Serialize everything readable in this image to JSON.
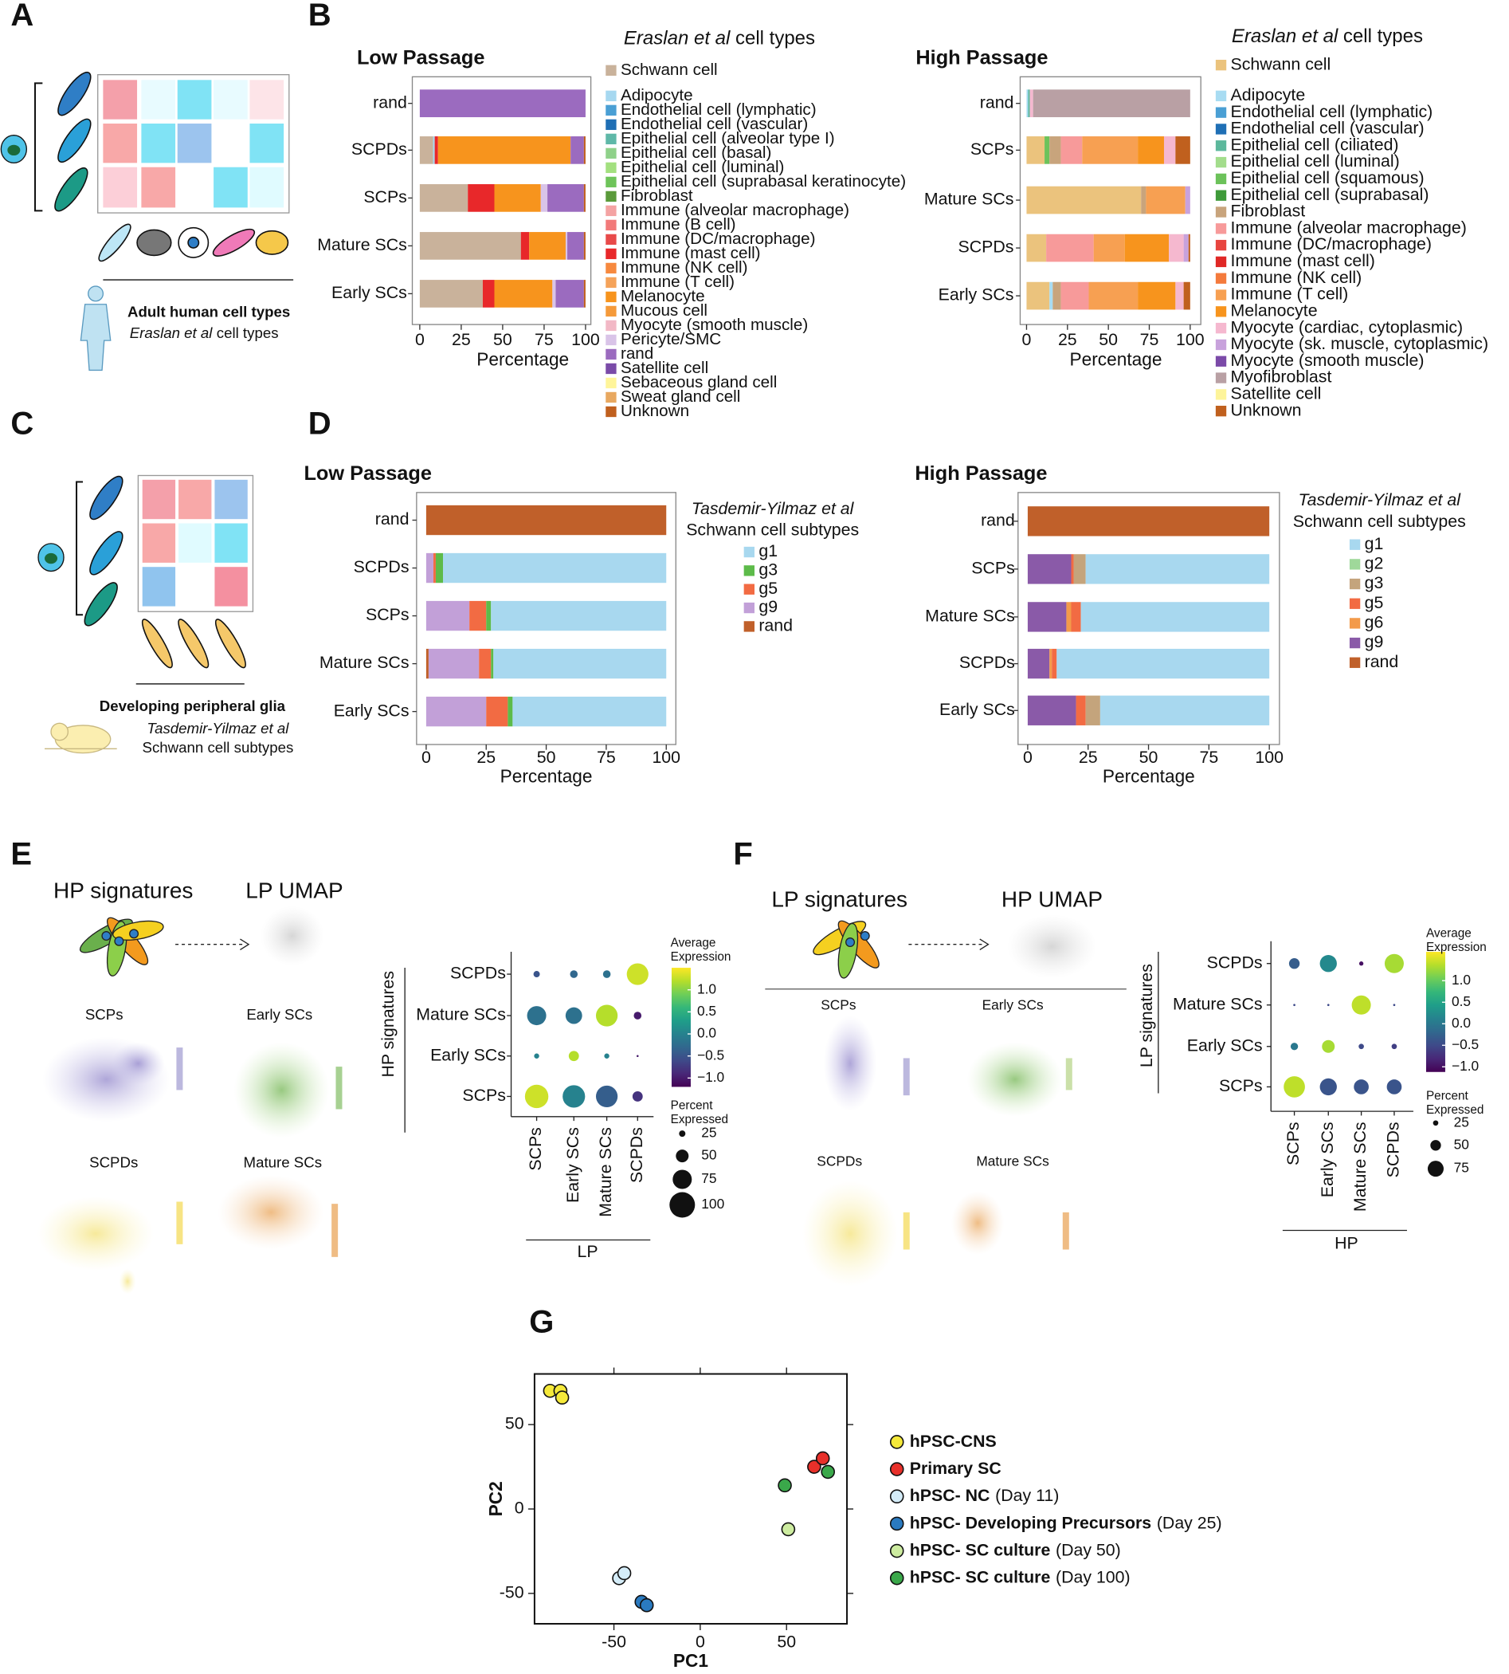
{
  "figure": {
    "panels": [
      "A",
      "B",
      "C",
      "D",
      "E",
      "F",
      "G"
    ],
    "A": {
      "caption": "Adult human cell types",
      "reference": [
        "Eraslan et al",
        "cell types"
      ]
    },
    "C": {
      "caption": "Developing peripheral glia",
      "reference": [
        "Tasdemir-Yilmaz et al",
        "Schwann cell subtypes"
      ]
    },
    "E": {
      "signatures": "HP signatures",
      "umap": "LP UMAP",
      "panels": [
        "SCPs",
        "Early SCs",
        "SCPDs",
        "Mature SCs"
      ]
    },
    "F": {
      "signatures": "LP signatures",
      "umap": "HP UMAP",
      "panels": [
        "SCPs",
        "Early SCs",
        "SCPDs",
        "Mature SCs"
      ]
    }
  },
  "chart_data": [
    {
      "type": "bar",
      "orientation": "horizontal",
      "stacked": true,
      "title": "Low Passage",
      "legend_title": [
        "Eraslan et al",
        "cell types"
      ],
      "x_label": "Percentage",
      "categories": [
        "rand",
        "SCPDs",
        "SCPs",
        "Mature SCs",
        "Early SCs"
      ],
      "xlim": [
        -4.5,
        103.2
      ],
      "xticks": [
        0,
        25,
        50,
        75,
        100
      ],
      "series": [
        {
          "name": "Schwann cell",
          "color": "#c9b29b",
          "values": [
            0,
            8,
            29,
            61,
            38
          ]
        },
        {
          "name": "Adipocyte",
          "color": "#a6d8f0",
          "values": [
            0,
            1,
            0,
            0,
            0
          ]
        },
        {
          "name": "Endothelial cell (lymphatic)",
          "color": "#4a9fd4",
          "values": [
            0,
            0,
            0,
            0,
            0
          ]
        },
        {
          "name": "Endothelial cell (vascular)",
          "color": "#1f6fb5",
          "values": [
            0,
            0,
            0,
            0,
            0
          ]
        },
        {
          "name": "Epithelial cell (alveolar type I)",
          "color": "#5fb8a8",
          "values": [
            0,
            0,
            0,
            0,
            0
          ]
        },
        {
          "name": "Epithelial cell (basal)",
          "color": "#8fd18a",
          "values": [
            0,
            0,
            0,
            0,
            0
          ]
        },
        {
          "name": "Epithelial cell (luminal)",
          "color": "#a3e07f",
          "values": [
            0,
            0,
            0,
            0,
            0
          ]
        },
        {
          "name": "Epithelial cell (suprabasal keratinocyte)",
          "color": "#6ec45a",
          "values": [
            0,
            0,
            0,
            0,
            0
          ]
        },
        {
          "name": "Fibroblast",
          "color": "#5a9a3a",
          "values": [
            0,
            0,
            0,
            0,
            0
          ]
        },
        {
          "name": "Immune (alveolar macrophage)",
          "color": "#f4a3a3",
          "values": [
            0,
            0,
            0,
            0,
            0
          ]
        },
        {
          "name": "Immune (B cell)",
          "color": "#f27a7a",
          "values": [
            0,
            0,
            0,
            0,
            0
          ]
        },
        {
          "name": "Immune (DC/macrophage)",
          "color": "#e84a4a",
          "values": [
            0,
            0,
            0,
            0,
            0
          ]
        },
        {
          "name": "Immune (mast cell)",
          "color": "#e8282a",
          "values": [
            0,
            2,
            16,
            5,
            7
          ]
        },
        {
          "name": "Immune (NK cell)",
          "color": "#f7893e",
          "values": [
            0,
            0,
            0,
            0,
            0
          ]
        },
        {
          "name": "Immune (T cell)",
          "color": "#f5a35a",
          "values": [
            0,
            0,
            0,
            0,
            0
          ]
        },
        {
          "name": "Melanocyte",
          "color": "#f7941d",
          "values": [
            0,
            80,
            28,
            22,
            35
          ]
        },
        {
          "name": "Mucous cell",
          "color": "#f59a3a",
          "values": [
            0,
            0,
            0,
            0,
            0
          ]
        },
        {
          "name": "Myocyte (smooth muscle)",
          "color": "#f2b8c6",
          "values": [
            0,
            0,
            0,
            0,
            0
          ]
        },
        {
          "name": "Pericyte/SMC",
          "color": "#d9c4e8",
          "values": [
            0,
            0,
            4,
            1,
            2
          ]
        },
        {
          "name": "rand",
          "color": "#9b6bbf",
          "values": [
            100,
            8,
            22,
            10,
            17
          ]
        },
        {
          "name": "Satellite cell",
          "color": "#7a4ba8",
          "values": [
            0,
            0,
            0,
            0,
            0
          ]
        },
        {
          "name": "Sebaceous gland cell",
          "color": "#fff59a",
          "values": [
            0,
            0,
            0,
            0,
            0
          ]
        },
        {
          "name": "Sweat gland cell",
          "color": "#e8a860",
          "values": [
            0,
            0,
            0,
            0,
            0
          ]
        },
        {
          "name": "Unknown",
          "color": "#c0601e",
          "values": [
            0,
            1,
            1,
            1,
            1
          ]
        }
      ]
    },
    {
      "type": "bar",
      "orientation": "horizontal",
      "stacked": true,
      "title": "High Passage",
      "legend_title": [
        "Eraslan et al",
        "cell types"
      ],
      "x_label": "Percentage",
      "categories": [
        "rand",
        "SCPs",
        "Mature SCs",
        "SCPDs",
        "Early SCs"
      ],
      "xlim": [
        -3.9,
        106.5
      ],
      "xticks": [
        0,
        25,
        50,
        75,
        100
      ],
      "series": [
        {
          "name": "Schwann cell",
          "color": "#ebc37d",
          "values": [
            0,
            11,
            70,
            12,
            14
          ]
        },
        {
          "name": "Adipocyte",
          "color": "#a8dcf2",
          "values": [
            1,
            0,
            0,
            0,
            2
          ]
        },
        {
          "name": "Endothelial cell (lymphatic)",
          "color": "#4a9fd4",
          "values": [
            0,
            0,
            0,
            0,
            0
          ]
        },
        {
          "name": "Endothelial cell (vascular)",
          "color": "#1f6fb5",
          "values": [
            0,
            0,
            0,
            0,
            0
          ]
        },
        {
          "name": "Epithelial cell (ciliated)",
          "color": "#5cb89c",
          "values": [
            1,
            0,
            0,
            0,
            0
          ]
        },
        {
          "name": "Epithelial cell (luminal)",
          "color": "#a3dd8c",
          "values": [
            0,
            0,
            0,
            0,
            0
          ]
        },
        {
          "name": "Epithelial cell (squamous)",
          "color": "#6cc25a",
          "values": [
            0,
            3,
            0,
            0,
            0
          ]
        },
        {
          "name": "Epithelial cell (suprabasal)",
          "color": "#3f9a3a",
          "values": [
            0,
            0,
            0,
            0,
            0
          ]
        },
        {
          "name": "Fibroblast",
          "color": "#c8a47c",
          "values": [
            0,
            7,
            3,
            0,
            5
          ]
        },
        {
          "name": "Immune (alveolar macrophage)",
          "color": "#f79a9a",
          "values": [
            0,
            13,
            0,
            29,
            17
          ]
        },
        {
          "name": "Immune (DC/macrophage)",
          "color": "#e8453f",
          "values": [
            0,
            0,
            0,
            0,
            0
          ]
        },
        {
          "name": "Immune (mast cell)",
          "color": "#e02826",
          "values": [
            0,
            0,
            0,
            0,
            0
          ]
        },
        {
          "name": "Immune (NK cell)",
          "color": "#f47a3c",
          "values": [
            0,
            0,
            0,
            0,
            0
          ]
        },
        {
          "name": "Immune (T cell)",
          "color": "#f7a052",
          "values": [
            0,
            34,
            24,
            19,
            30
          ]
        },
        {
          "name": "Melanocyte",
          "color": "#f7941d",
          "values": [
            0,
            16,
            0,
            27,
            23
          ]
        },
        {
          "name": "Myocyte (cardiac, cytoplasmic)",
          "color": "#f5b8cf",
          "values": [
            2,
            7,
            0,
            9,
            5
          ]
        },
        {
          "name": "Myocyte (sk. muscle, cytoplasmic)",
          "color": "#c8a2dc",
          "values": [
            0,
            0,
            3,
            3,
            0
          ]
        },
        {
          "name": "Myocyte (smooth muscle)",
          "color": "#7b4aa8",
          "values": [
            0,
            0,
            0,
            0,
            0
          ]
        },
        {
          "name": "Myofibroblast",
          "color": "#b9a0a4",
          "values": [
            96,
            0,
            0,
            0,
            0
          ]
        },
        {
          "name": "Satellite cell",
          "color": "#fdf49a",
          "values": [
            0,
            0,
            0,
            0,
            0
          ]
        },
        {
          "name": "Unknown",
          "color": "#c0601e",
          "values": [
            0,
            9,
            0,
            1,
            4
          ]
        }
      ]
    },
    {
      "type": "bar",
      "orientation": "horizontal",
      "stacked": true,
      "stack_reverse": true,
      "title": "Low Passage",
      "legend_title": [
        "Tasdemir-Yilmaz et al",
        "Schwann cell subtypes"
      ],
      "x_label": "Percentage",
      "categories": [
        "rand",
        "SCPDs",
        "SCPs",
        "Mature SCs",
        "Early SCs"
      ],
      "xlim": [
        -4,
        104
      ],
      "xticks": [
        0,
        25,
        50,
        75,
        100
      ],
      "series": [
        {
          "name": "g1",
          "color": "#a8d8ef",
          "values": [
            0,
            93,
            73,
            72,
            64
          ]
        },
        {
          "name": "g3",
          "color": "#5dbb4a",
          "values": [
            0,
            3,
            2,
            1,
            2
          ]
        },
        {
          "name": "g5",
          "color": "#f26b43",
          "values": [
            0,
            1,
            7,
            5,
            9
          ]
        },
        {
          "name": "g9",
          "color": "#c2a0d8",
          "values": [
            0,
            3,
            18,
            21,
            25
          ]
        },
        {
          "name": "rand",
          "color": "#c0602a",
          "values": [
            100,
            0,
            0,
            1,
            0
          ]
        }
      ]
    },
    {
      "type": "bar",
      "orientation": "horizontal",
      "stacked": true,
      "stack_reverse": true,
      "title": "High Passage",
      "legend_title": [
        "Tasdemir-Yilmaz et al",
        "Schwann cell subtypes"
      ],
      "x_label": "Percentage",
      "categories": [
        "rand",
        "SCPs",
        "Mature SCs",
        "SCPDs",
        "Early SCs"
      ],
      "xlim": [
        -4,
        104.2
      ],
      "xticks": [
        0,
        25,
        50,
        75,
        100
      ],
      "series": [
        {
          "name": "g1",
          "color": "#a8d8ef",
          "values": [
            0,
            76,
            78,
            88,
            70
          ]
        },
        {
          "name": "g2",
          "color": "#9fd89a",
          "values": [
            0,
            0,
            0,
            0,
            0
          ]
        },
        {
          "name": "g3",
          "color": "#c4a47c",
          "values": [
            0,
            5,
            0,
            0,
            6
          ]
        },
        {
          "name": "g5",
          "color": "#f26b43",
          "values": [
            0,
            1,
            4,
            2,
            4
          ]
        },
        {
          "name": "g6",
          "color": "#f39a4a",
          "values": [
            0,
            0,
            2,
            1,
            0
          ]
        },
        {
          "name": "g9",
          "color": "#8a5aa8",
          "values": [
            0,
            18,
            16,
            9,
            20
          ]
        },
        {
          "name": "rand",
          "color": "#c0602a",
          "values": [
            100,
            0,
            0,
            0,
            0
          ]
        }
      ]
    },
    {
      "type": "dot",
      "colormap": "viridis",
      "x_label": "LP",
      "y_label": "HP signatures",
      "categories": [
        "SCPs",
        "Early SCs",
        "Mature SCs",
        "SCPDs"
      ],
      "color_title": [
        "Average",
        "Expression"
      ],
      "clim": [
        -1.2,
        1.5
      ],
      "cticks": [
        {
          "value": 1,
          "label": "1.0"
        },
        0.5,
        {
          "value": 0,
          "label": "0.0"
        },
        {
          "value": -0.5,
          "label": "−0.5"
        },
        {
          "value": -1,
          "label": "−1.0"
        }
      ],
      "size_title": [
        "Percent",
        "Expressed"
      ],
      "size_ticks": [
        25,
        50,
        75,
        100
      ],
      "series": [
        {
          "name": "SCPDs",
          "values": [
            -0.5,
            -0.3,
            -0.2,
            1.3
          ],
          "sizes": [
            25,
            30,
            30,
            85
          ]
        },
        {
          "name": "Mature SCs",
          "values": [
            -0.2,
            -0.2,
            1.2,
            -1.0
          ],
          "sizes": [
            75,
            65,
            85,
            30
          ]
        },
        {
          "name": "Early SCs",
          "values": [
            0.0,
            1.2,
            0.0,
            -1.0
          ],
          "sizes": [
            20,
            40,
            20,
            8
          ]
        },
        {
          "name": "SCPs",
          "values": [
            1.3,
            0.0,
            -0.4,
            -0.8
          ],
          "sizes": [
            92,
            88,
            85,
            40
          ]
        }
      ]
    },
    {
      "type": "dot",
      "colormap": "viridis",
      "x_label": "HP",
      "y_label": "LP signatures",
      "categories": [
        "SCPs",
        "Early SCs",
        "Mature SCs",
        "SCPDs"
      ],
      "color_title": [
        "Average",
        "Expression"
      ],
      "clim": [
        -1.12,
        1.67
      ],
      "cticks": [
        {
          "value": 1,
          "label": "1.0"
        },
        0.5,
        {
          "value": 0,
          "label": "0.0"
        },
        {
          "value": -0.5,
          "label": "−0.5"
        },
        {
          "value": -1,
          "label": "−1.0"
        }
      ],
      "size_title": [
        "Percent",
        "Expressed"
      ],
      "size_ticks": [
        25,
        50,
        75
      ],
      "series": [
        {
          "name": "SCPDs",
          "values": [
            -0.3,
            0.2,
            -1.0,
            1.3
          ],
          "sizes": [
            50,
            80,
            20,
            90
          ]
        },
        {
          "name": "Mature SCs",
          "values": [
            -0.5,
            -0.5,
            1.4,
            -0.5
          ],
          "sizes": [
            10,
            10,
            90,
            10
          ]
        },
        {
          "name": "Early SCs",
          "values": [
            0.0,
            1.3,
            -0.5,
            -0.6
          ],
          "sizes": [
            35,
            60,
            25,
            25
          ]
        },
        {
          "name": "SCPs",
          "values": [
            1.4,
            -0.4,
            -0.4,
            -0.4
          ],
          "sizes": [
            100,
            80,
            70,
            70
          ]
        }
      ]
    },
    {
      "type": "scatter",
      "x_label": "PC1",
      "y_label": "PC2",
      "xlim": [
        -96,
        85
      ],
      "ylim": [
        -68,
        80
      ],
      "xticks": [
        -50,
        0,
        50
      ],
      "yticks": [
        -50,
        0,
        50
      ],
      "series": [
        {
          "name": "hPSC-CNS",
          "color": "#f5e93a",
          "x": [
            -87,
            -81,
            -80
          ],
          "values": [
            70,
            70,
            66
          ]
        },
        {
          "name": "Primary SC",
          "color": "#e8302a",
          "x": [
            66,
            71
          ],
          "values": [
            25,
            30
          ]
        },
        {
          "name": "hPSC- NC",
          "day_label": "(Day 11)",
          "color": "#d4ecf8",
          "x": [
            -47,
            -44
          ],
          "values": [
            -41,
            -38
          ]
        },
        {
          "name": "hPSC- Developing Precursors",
          "day_label": "(Day 25)",
          "color": "#2a7ac0",
          "x": [
            -34,
            -31
          ],
          "values": [
            -55,
            -57
          ]
        },
        {
          "name": "hPSC- SC culture",
          "day_label": "(Day 50)",
          "color": "#cdeca0",
          "x": [
            51
          ],
          "values": [
            -12
          ]
        },
        {
          "name": "hPSC- SC culture",
          "day_label": "(Day 100)",
          "color": "#3aa84a",
          "x": [
            49,
            74
          ],
          "values": [
            14,
            22
          ]
        }
      ]
    }
  ]
}
